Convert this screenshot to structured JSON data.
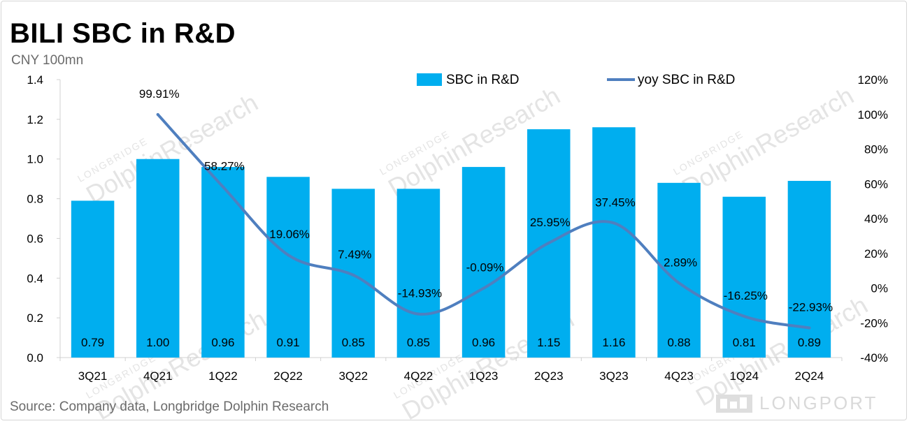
{
  "title": "BILI SBC in R&D",
  "unit": "CNY 100mn",
  "source": "Source: Company data, Longbridge Dolphin Research",
  "watermark": {
    "small": "LONGBRIDGE",
    "big": "DolphinResearch",
    "brand": "LONGPORT"
  },
  "colors": {
    "bar": "#00AEEF",
    "line": "#4F7FBF",
    "axis": "#d0d0d0",
    "text": "#000000"
  },
  "chart_data": {
    "type": "bar",
    "title": "BILI SBC in R&D",
    "categories": [
      "3Q21",
      "4Q21",
      "1Q22",
      "2Q22",
      "3Q22",
      "4Q22",
      "1Q23",
      "2Q23",
      "3Q23",
      "4Q23",
      "1Q24",
      "2Q24"
    ],
    "series": [
      {
        "name": "SBC in R&D",
        "type": "bar",
        "axis": "left",
        "values": [
          0.79,
          1.0,
          0.96,
          0.91,
          0.85,
          0.85,
          0.96,
          1.15,
          1.16,
          0.88,
          0.81,
          0.89
        ],
        "labels": [
          "0.79",
          "1.00",
          "0.96",
          "0.91",
          "0.85",
          "0.85",
          "0.96",
          "1.15",
          "1.16",
          "0.88",
          "0.81",
          "0.89"
        ]
      },
      {
        "name": "yoy SBC in R&D",
        "type": "line",
        "axis": "right",
        "values": [
          null,
          99.91,
          58.27,
          19.06,
          7.49,
          -14.93,
          -0.09,
          25.95,
          37.45,
          2.89,
          -16.25,
          -22.93
        ],
        "labels": [
          "",
          "99.91%",
          "58.27%",
          "19.06%",
          "7.49%",
          "-14.93%",
          "-0.09%",
          "25.95%",
          "37.45%",
          "2.89%",
          "-16.25%",
          "-22.93%"
        ]
      }
    ],
    "left_axis": {
      "ylim": [
        0,
        1.4
      ],
      "ticks": [
        0.0,
        0.2,
        0.4,
        0.6,
        0.8,
        1.0,
        1.2,
        1.4
      ],
      "tick_labels": [
        "0.0",
        "0.2",
        "0.4",
        "0.6",
        "0.8",
        "1.0",
        "1.2",
        "1.4"
      ]
    },
    "right_axis": {
      "ylim": [
        -40,
        120
      ],
      "ticks": [
        -40,
        -20,
        0,
        20,
        40,
        60,
        80,
        100,
        120
      ],
      "tick_labels": [
        "-40%",
        "-20%",
        "0%",
        "20%",
        "40%",
        "60%",
        "80%",
        "100%",
        "120%"
      ]
    },
    "legend": [
      "SBC in R&D",
      "yoy SBC in R&D"
    ],
    "legend_position": "top-center",
    "grid": false
  }
}
